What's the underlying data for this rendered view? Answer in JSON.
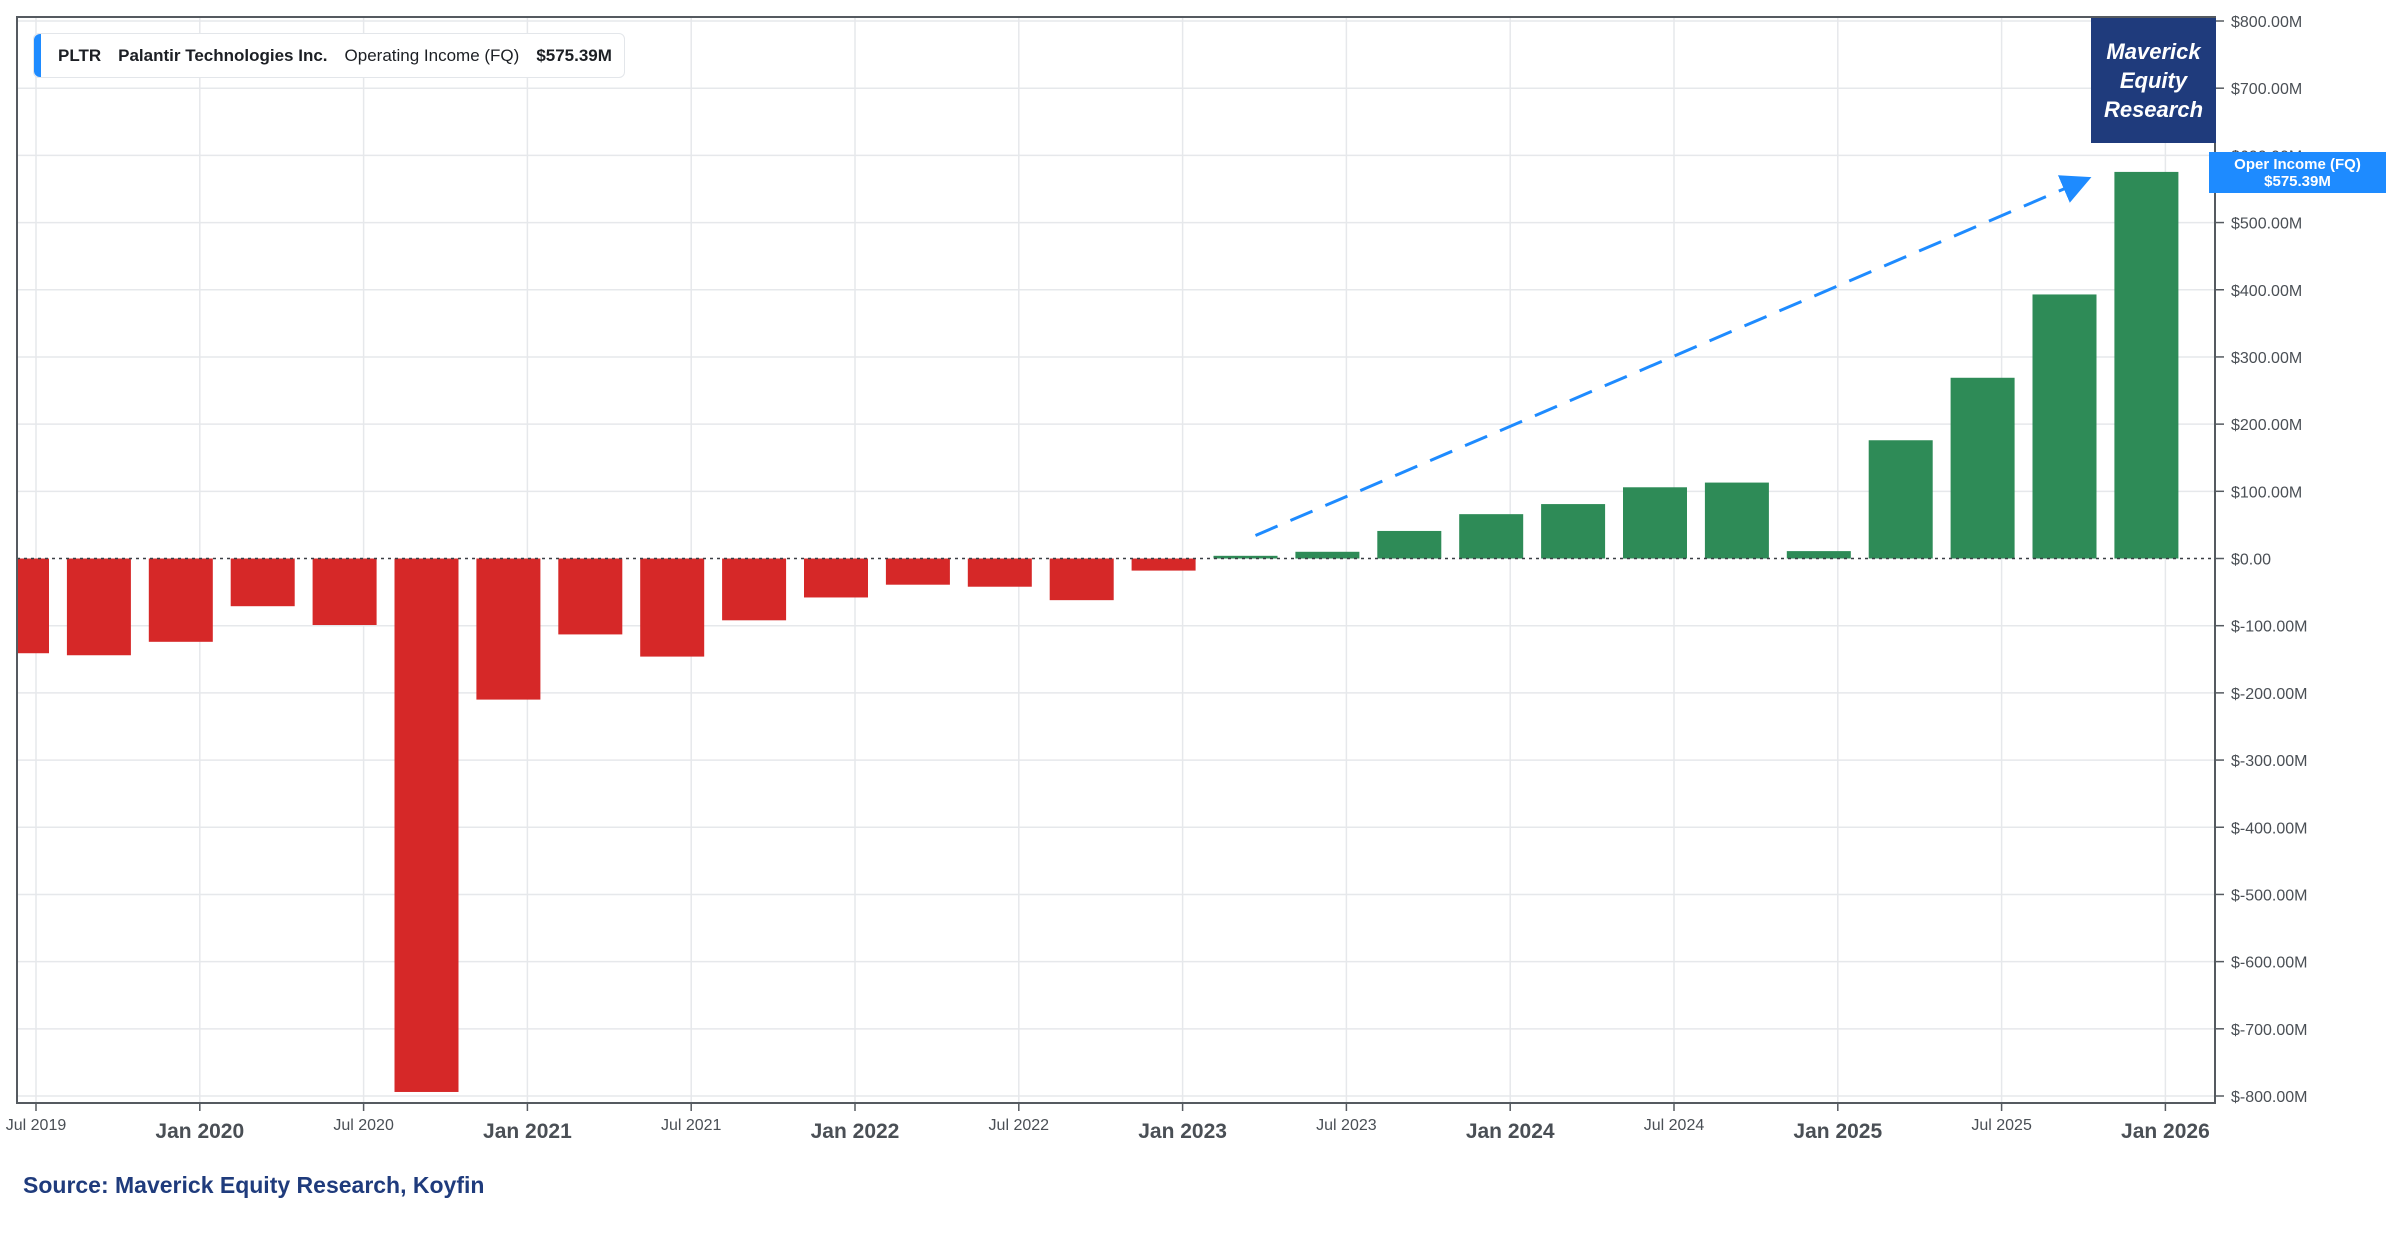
{
  "legend": {
    "ticker": "PLTR",
    "company": "Palantir Technologies Inc.",
    "metric": "Operating Income (FQ)",
    "value": "$575.39M"
  },
  "brand": {
    "line1": "Maverick",
    "line2": "Equity",
    "line3": "Research"
  },
  "value_tag": {
    "label": "Oper Income (FQ)",
    "value": "$575.39M"
  },
  "source": "Source: Maverick Equity Research, Koyfin",
  "colors": {
    "positive": "#2e8b57",
    "negative": "#d62828",
    "accent": "#1e8bff",
    "brand": "#1f3b7c"
  },
  "chart_data": {
    "type": "bar",
    "title": "",
    "xlabel": "",
    "ylabel": "",
    "ylim": [
      -800,
      800
    ],
    "y_unit": "$M",
    "y_ticks": [
      {
        "value": 800,
        "label": "$800.00M"
      },
      {
        "value": 700,
        "label": "$700.00M"
      },
      {
        "value": 600,
        "label": "$600.00M"
      },
      {
        "value": 500,
        "label": "$500.00M"
      },
      {
        "value": 400,
        "label": "$400.00M"
      },
      {
        "value": 300,
        "label": "$300.00M"
      },
      {
        "value": 200,
        "label": "$200.00M"
      },
      {
        "value": 100,
        "label": "$100.00M"
      },
      {
        "value": 0,
        "label": "$0.00"
      },
      {
        "value": -100,
        "label": "$-100.00M"
      },
      {
        "value": -200,
        "label": "$-200.00M"
      },
      {
        "value": -300,
        "label": "$-300.00M"
      },
      {
        "value": -400,
        "label": "$-400.00M"
      },
      {
        "value": -500,
        "label": "$-500.00M"
      },
      {
        "value": -600,
        "label": "$-600.00M"
      },
      {
        "value": -700,
        "label": "$-700.00M"
      },
      {
        "value": -800,
        "label": "$-800.00M"
      }
    ],
    "x_ticks": [
      {
        "label": "Jul 2019",
        "major": false
      },
      {
        "label": "Jan 2020",
        "major": true
      },
      {
        "label": "Jul 2020",
        "major": false
      },
      {
        "label": "Jan 2021",
        "major": true
      },
      {
        "label": "Jul 2021",
        "major": false
      },
      {
        "label": "Jan 2022",
        "major": true
      },
      {
        "label": "Jul 2022",
        "major": false
      },
      {
        "label": "Jan 2023",
        "major": true
      },
      {
        "label": "Jul 2023",
        "major": false
      },
      {
        "label": "Jan 2024",
        "major": true
      },
      {
        "label": "Jul 2024",
        "major": false
      },
      {
        "label": "Jan 2025",
        "major": true
      },
      {
        "label": "Jul 2025",
        "major": false
      },
      {
        "label": "Jan 2026",
        "major": true
      }
    ],
    "values": [
      -141,
      -144,
      -124,
      -71,
      -99,
      -794,
      -210,
      -113,
      -146,
      -92,
      -58,
      -39,
      -42,
      -62,
      -18,
      4,
      10,
      41,
      66,
      81,
      106,
      113,
      11,
      176,
      269,
      393,
      575.39
    ],
    "trend_arrow": {
      "from_index": 15,
      "to_index": 26,
      "style": "dashed"
    },
    "grid": true,
    "legend": "top-left"
  }
}
